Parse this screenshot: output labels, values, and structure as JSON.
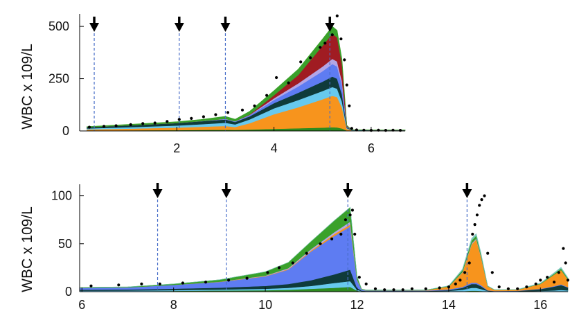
{
  "colors": {
    "green_dark": "#2e8b1f",
    "green_top": "#3aa12a",
    "teal_edge": "#7ec8c0",
    "dark_teal": "#0f3b3a",
    "sky": "#67c9ee",
    "blue": "#5e7cf2",
    "lavender": "#b3a6e6",
    "orange": "#f7941d",
    "darkred": "#a01c22",
    "marker": "#000000",
    "vline": "#4a6fc9"
  },
  "chart_data": [
    {
      "type": "area",
      "stacked": true,
      "ylabel": "WBC x 109/L",
      "xlim": [
        0,
        6.7
      ],
      "ylim": [
        0,
        560
      ],
      "x_ticks": [
        2,
        4,
        6
      ],
      "y_ticks": [
        0,
        250,
        500
      ],
      "treatment_arrows_x": [
        0.3,
        2.05,
        3.0,
        5.15
      ],
      "x": [
        0.15,
        1,
        2,
        2.5,
        3.0,
        3.2,
        3.5,
        4.0,
        4.5,
        5.0,
        5.2,
        5.3,
        5.4,
        5.5,
        5.6,
        6.0,
        6.5,
        6.7
      ],
      "series": [
        {
          "color_key": "green_dark",
          "values": [
            2,
            3,
            4,
            5,
            6,
            5,
            7,
            10,
            13,
            16,
            18,
            17,
            12,
            2,
            1,
            1,
            1,
            1
          ]
        },
        {
          "color_key": "orange",
          "values": [
            5,
            8,
            12,
            15,
            18,
            14,
            30,
            70,
            100,
            135,
            150,
            145,
            100,
            8,
            2,
            1,
            1,
            1
          ]
        },
        {
          "color_key": "sky",
          "values": [
            5,
            7,
            10,
            12,
            15,
            12,
            18,
            28,
            35,
            40,
            42,
            40,
            28,
            4,
            1,
            1,
            1,
            1
          ]
        },
        {
          "color_key": "dark_teal",
          "values": [
            6,
            9,
            12,
            14,
            16,
            12,
            15,
            25,
            35,
            45,
            50,
            48,
            35,
            4,
            1,
            1,
            1,
            1
          ]
        },
        {
          "color_key": "blue",
          "values": [
            0,
            0,
            0,
            1,
            2,
            2,
            5,
            15,
            30,
            50,
            60,
            58,
            45,
            3,
            0,
            0,
            0,
            0
          ]
        },
        {
          "color_key": "lavender",
          "values": [
            0,
            0,
            0,
            0,
            1,
            1,
            2,
            8,
            15,
            22,
            25,
            24,
            18,
            1,
            0,
            0,
            0,
            0
          ]
        },
        {
          "color_key": "darkred",
          "values": [
            0,
            0,
            0,
            0,
            0,
            0,
            2,
            15,
            40,
            100,
            120,
            115,
            80,
            3,
            0,
            0,
            0,
            0
          ]
        },
        {
          "color_key": "green_top",
          "values": [
            3,
            4,
            6,
            8,
            12,
            10,
            15,
            22,
            28,
            32,
            35,
            34,
            25,
            2,
            1,
            1,
            1,
            1
          ]
        }
      ],
      "scatter": {
        "x": [
          0.2,
          0.5,
          0.75,
          1.05,
          1.3,
          1.55,
          1.8,
          2.05,
          2.3,
          2.55,
          2.8,
          3.05,
          3.35,
          3.6,
          3.85,
          4.05,
          4.3,
          4.55,
          4.75,
          4.95,
          5.05,
          5.2,
          5.3,
          5.38,
          5.45,
          5.5,
          5.55,
          5.6,
          5.7,
          5.85,
          6.0,
          6.15,
          6.3,
          6.45,
          6.6
        ],
        "y": [
          18,
          22,
          25,
          30,
          35,
          38,
          45,
          55,
          60,
          68,
          78,
          88,
          100,
          120,
          170,
          255,
          230,
          330,
          350,
          400,
          420,
          460,
          550,
          440,
          340,
          220,
          120,
          12,
          5,
          4,
          3,
          4,
          3,
          4,
          3
        ]
      }
    },
    {
      "type": "area",
      "stacked": true,
      "ylabel": "WBC x 109/L",
      "xlim": [
        5.95,
        16.6
      ],
      "ylim": [
        0,
        112
      ],
      "x_ticks": [
        6,
        8,
        10,
        12,
        14,
        16
      ],
      "y_ticks": [
        0,
        50,
        100
      ],
      "treatment_arrows_x": [
        7.65,
        9.15,
        11.8,
        14.4
      ],
      "x": [
        5.95,
        7,
        8,
        9,
        10,
        10.5,
        11,
        11.5,
        11.85,
        12.0,
        12.1,
        12.2,
        13.5,
        14.0,
        14.3,
        14.5,
        14.6,
        14.7,
        14.85,
        15.0,
        15.5,
        16.0,
        16.3,
        16.45,
        16.6
      ],
      "series": [
        {
          "color_key": "green_dark",
          "values": [
            0.5,
            0.5,
            0.8,
            1.2,
            1.5,
            2,
            3,
            4,
            5,
            1,
            0.3,
            0.2,
            0.2,
            0.3,
            0.5,
            1,
            1,
            0.8,
            0.2,
            0.1,
            0.1,
            0.2,
            0.3,
            0.4,
            0.3
          ]
        },
        {
          "color_key": "sky",
          "values": [
            0.5,
            0.6,
            0.8,
            1,
            1.5,
            2,
            3,
            5,
            6,
            1,
            0.3,
            0.2,
            0.2,
            0.5,
            1.5,
            3,
            3,
            2,
            0.5,
            0.2,
            0.2,
            0.5,
            1,
            1.5,
            1
          ]
        },
        {
          "color_key": "dark_teal",
          "values": [
            1,
            1.2,
            1.5,
            2,
            3,
            4,
            6,
            9,
            12,
            2,
            0.5,
            0.3,
            0.3,
            0.8,
            2,
            4,
            4,
            3,
            0.5,
            0.3,
            0.5,
            2,
            4,
            5,
            3
          ]
        },
        {
          "color_key": "blue",
          "values": [
            2,
            2.2,
            4,
            6,
            10,
            15,
            30,
            40,
            45,
            8,
            1,
            0.5,
            0.5,
            0.8,
            1,
            1.5,
            1.5,
            1.2,
            0.3,
            0.2,
            0.2,
            0.3,
            0.5,
            0.8,
            0.5
          ]
        },
        {
          "color_key": "orange",
          "values": [
            0,
            0,
            0,
            0.2,
            0.3,
            0.5,
            1,
            2,
            2,
            0.5,
            0.2,
            0.2,
            0.3,
            3,
            15,
            40,
            45,
            30,
            4,
            1,
            1,
            5,
            12,
            15,
            8
          ]
        },
        {
          "color_key": "lavender",
          "values": [
            0,
            0,
            0,
            0,
            0.5,
            1,
            1.5,
            2,
            3,
            0.5,
            0,
            0,
            0,
            0,
            0.5,
            1,
            1,
            0.8,
            0.1,
            0,
            0,
            0,
            0,
            0,
            0
          ]
        },
        {
          "color_key": "green_top",
          "values": [
            0.5,
            0.5,
            1,
            2,
            4,
            6,
            8,
            12,
            15,
            3,
            0.5,
            0.3,
            0.3,
            0.5,
            2,
            3,
            3,
            2,
            0.3,
            0.2,
            0.2,
            0.5,
            1,
            1.5,
            1
          ]
        },
        {
          "color_key": "teal_edge",
          "values": [
            0,
            0,
            0,
            0,
            0,
            0,
            0,
            0,
            0,
            0,
            0,
            0,
            0,
            0.3,
            1,
            2,
            2,
            1.5,
            0.2,
            0.1,
            0.2,
            0.5,
            1,
            1.2,
            0.8
          ]
        }
      ],
      "scatter": {
        "x": [
          6.2,
          6.8,
          7.3,
          7.7,
          8.2,
          8.7,
          9.2,
          9.6,
          10.05,
          10.3,
          10.6,
          10.9,
          11.2,
          11.45,
          11.65,
          11.75,
          11.85,
          11.9,
          11.95,
          12.05,
          12.2,
          12.4,
          12.6,
          12.8,
          13.0,
          13.2,
          13.5,
          13.8,
          14.0,
          14.15,
          14.25,
          14.35,
          14.45,
          14.52,
          14.57,
          14.62,
          14.67,
          14.72,
          14.78,
          14.85,
          14.95,
          15.1,
          15.3,
          15.5,
          15.7,
          15.9,
          16.0,
          16.15,
          16.3,
          16.4,
          16.5,
          16.55,
          16.6
        ],
        "y": [
          6,
          7,
          8,
          8,
          9,
          10,
          12,
          14,
          20,
          25,
          30,
          40,
          50,
          55,
          60,
          75,
          80,
          85,
          60,
          15,
          8,
          3,
          2,
          2,
          2,
          3,
          3,
          4,
          5,
          8,
          12,
          20,
          30,
          60,
          70,
          80,
          90,
          96,
          100,
          40,
          20,
          5,
          3,
          3,
          5,
          8,
          12,
          15,
          10,
          20,
          45,
          30,
          12
        ]
      }
    }
  ]
}
